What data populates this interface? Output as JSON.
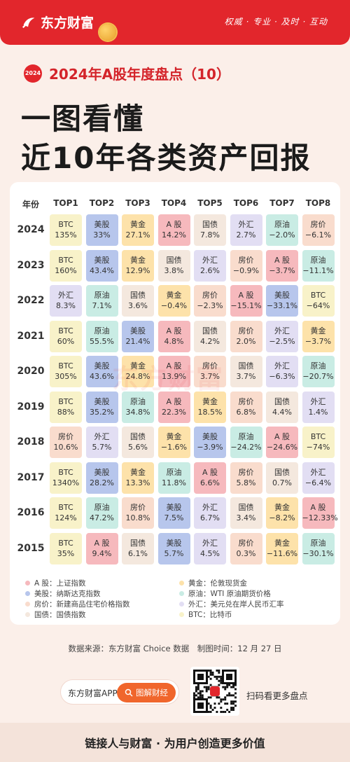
{
  "brand": {
    "name": "东方财富",
    "slogan": "权威 · 专业 · 及时 · 互动"
  },
  "subtitle": {
    "badge": "2024",
    "title": "2024年A股年度盘点（10）"
  },
  "headline": {
    "line1": "一图看懂",
    "line2": "近10年各类资产回报"
  },
  "table": {
    "year_header": "年份",
    "columns": [
      "TOP1",
      "TOP2",
      "TOP3",
      "TOP4",
      "TOP5",
      "TOP6",
      "TOP7",
      "TOP8"
    ],
    "rows": [
      {
        "year": "2024",
        "cells": [
          {
            "a": "BTC",
            "v": "135%"
          },
          {
            "a": "美股",
            "v": "33%"
          },
          {
            "a": "黄金",
            "v": "27.1%"
          },
          {
            "a": "A 股",
            "v": "14.2%"
          },
          {
            "a": "国债",
            "v": "7.8%"
          },
          {
            "a": "外汇",
            "v": "2.7%"
          },
          {
            "a": "原油",
            "v": "−2.0%"
          },
          {
            "a": "房价",
            "v": "−6.1%"
          }
        ]
      },
      {
        "year": "2023",
        "cells": [
          {
            "a": "BTC",
            "v": "160%"
          },
          {
            "a": "美股",
            "v": "43.4%"
          },
          {
            "a": "黄金",
            "v": "12.9%"
          },
          {
            "a": "国债",
            "v": "3.8%"
          },
          {
            "a": "外汇",
            "v": "2.6%"
          },
          {
            "a": "房价",
            "v": "−0.9%"
          },
          {
            "a": "A 股",
            "v": "−3.7%"
          },
          {
            "a": "原油",
            "v": "−11.1%"
          }
        ]
      },
      {
        "year": "2022",
        "cells": [
          {
            "a": "外汇",
            "v": "8.3%"
          },
          {
            "a": "原油",
            "v": "7.1%"
          },
          {
            "a": "国债",
            "v": "3.6%"
          },
          {
            "a": "黄金",
            "v": "−0.4%"
          },
          {
            "a": "房价",
            "v": "−2.3%"
          },
          {
            "a": "A 股",
            "v": "−15.1%"
          },
          {
            "a": "美股",
            "v": "−33.1%"
          },
          {
            "a": "BTC",
            "v": "−64%"
          }
        ]
      },
      {
        "year": "2021",
        "cells": [
          {
            "a": "BTC",
            "v": "60%"
          },
          {
            "a": "原油",
            "v": "55.5%"
          },
          {
            "a": "美股",
            "v": "21.4%"
          },
          {
            "a": "A 股",
            "v": "4.8%"
          },
          {
            "a": "国债",
            "v": "4.2%"
          },
          {
            "a": "房价",
            "v": "2.0%"
          },
          {
            "a": "外汇",
            "v": "−2.5%"
          },
          {
            "a": "黄金",
            "v": "−3.7%"
          }
        ]
      },
      {
        "year": "2020",
        "cells": [
          {
            "a": "BTC",
            "v": "305%"
          },
          {
            "a": "美股",
            "v": "43.6%"
          },
          {
            "a": "黄金",
            "v": "24.8%"
          },
          {
            "a": "A 股",
            "v": "13.9%"
          },
          {
            "a": "房价",
            "v": "3.7%"
          },
          {
            "a": "国债",
            "v": "3.7%"
          },
          {
            "a": "外汇",
            "v": "−6.3%"
          },
          {
            "a": "原油",
            "v": "−20.7%"
          }
        ]
      },
      {
        "year": "2019",
        "cells": [
          {
            "a": "BTC",
            "v": "88%"
          },
          {
            "a": "美股",
            "v": "35.2%"
          },
          {
            "a": "原油",
            "v": "34.8%"
          },
          {
            "a": "A 股",
            "v": "22.3%"
          },
          {
            "a": "黄金",
            "v": "18.5%"
          },
          {
            "a": "房价",
            "v": "6.8%"
          },
          {
            "a": "国债",
            "v": "4.4%"
          },
          {
            "a": "外汇",
            "v": "1.4%"
          }
        ]
      },
      {
        "year": "2018",
        "cells": [
          {
            "a": "房价",
            "v": "10.6%"
          },
          {
            "a": "外汇",
            "v": "5.7%"
          },
          {
            "a": "国债",
            "v": "5.6%"
          },
          {
            "a": "黄金",
            "v": "−1.6%"
          },
          {
            "a": "美股",
            "v": "−3.9%"
          },
          {
            "a": "原油",
            "v": "−24.2%"
          },
          {
            "a": "A 股",
            "v": "−24.6%"
          },
          {
            "a": "BTC",
            "v": "−74%"
          }
        ]
      },
      {
        "year": "2017",
        "cells": [
          {
            "a": "BTC",
            "v": "1340%"
          },
          {
            "a": "美股",
            "v": "28.2%"
          },
          {
            "a": "黄金",
            "v": "13.3%"
          },
          {
            "a": "原油",
            "v": "11.8%"
          },
          {
            "a": "A 股",
            "v": "6.6%"
          },
          {
            "a": "房价",
            "v": "5.8%"
          },
          {
            "a": "国债",
            "v": "0.7%"
          },
          {
            "a": "外汇",
            "v": "−6.4%"
          }
        ]
      },
      {
        "year": "2016",
        "cells": [
          {
            "a": "BTC",
            "v": "124%"
          },
          {
            "a": "原油",
            "v": "47.2%"
          },
          {
            "a": "房价",
            "v": "10.8%"
          },
          {
            "a": "美股",
            "v": "7.5%"
          },
          {
            "a": "外汇",
            "v": "6.7%"
          },
          {
            "a": "国债",
            "v": "3.4%"
          },
          {
            "a": "黄金",
            "v": "−8.2%"
          },
          {
            "a": "A 股",
            "v": "−12.33%"
          }
        ]
      },
      {
        "year": "2015",
        "cells": [
          {
            "a": "BTC",
            "v": "35%"
          },
          {
            "a": "A 股",
            "v": "9.4%"
          },
          {
            "a": "国债",
            "v": "6.1%"
          },
          {
            "a": "美股",
            "v": "5.7%"
          },
          {
            "a": "外汇",
            "v": "4.5%"
          },
          {
            "a": "房价",
            "v": "0.3%"
          },
          {
            "a": "黄金",
            "v": "−11.6%"
          },
          {
            "a": "原油",
            "v": "−30.1%"
          }
        ]
      }
    ]
  },
  "asset_colors": {
    "BTC": "#f8f2c9",
    "美股": "#b7c6ec",
    "黄金": "#fde2aa",
    "A 股": "#f6b9bd",
    "国债": "#f4e8de",
    "外汇": "#e2def3",
    "原油": "#c9ece4",
    "房价": "#f9dccd"
  },
  "legend": [
    {
      "color": "#f6b9bd",
      "text": "A 股：上证指数"
    },
    {
      "color": "#fde2aa",
      "text": "黄金：伦敦现货金"
    },
    {
      "color": "#b7c6ec",
      "text": "美股：纳斯达克指数"
    },
    {
      "color": "#c9ece4",
      "text": "原油：WTI 原油期货价格"
    },
    {
      "color": "#f9dccd",
      "text": "房价：新建商品住宅价格指数"
    },
    {
      "color": "#e2def3",
      "text": "外汇：美元兑在岸人民币汇率"
    },
    {
      "color": "#f4e8de",
      "text": "国债：国债指数"
    },
    {
      "color": "#f8f2c9",
      "text": "BTC：比特币"
    }
  ],
  "source": "数据来源：东方财富 Choice 数据　制图时间：12 月 27 日",
  "footer": {
    "app_label": "东方财富APP",
    "button": "图解财经",
    "scan_text": "扫码看更多盘点",
    "tagline": "链接人与财富 · 为用户创造更多价值"
  },
  "watermark": "东方财富"
}
